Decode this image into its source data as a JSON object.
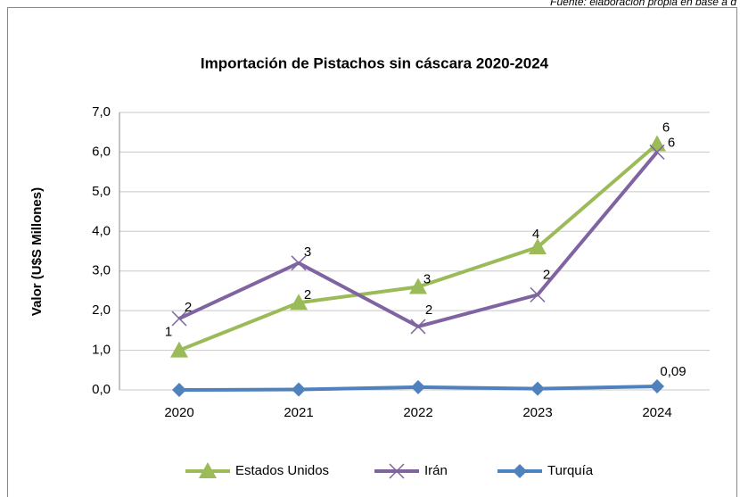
{
  "chart_data": {
    "type": "line",
    "source": "Fuente: elaboración propia en base a d",
    "title": "Importación de Pistachos sin cáscara 2020-2024",
    "y_label": "Valor (U$S Millones)",
    "categories": [
      "2020",
      "2021",
      "2022",
      "2023",
      "2024"
    ],
    "ylim": [
      0,
      7
    ],
    "yticks": [
      {
        "value": 0,
        "label": "0,0"
      },
      {
        "value": 1,
        "label": "1,0"
      },
      {
        "value": 2,
        "label": "2,0"
      },
      {
        "value": 3,
        "label": "3,0"
      },
      {
        "value": 4,
        "label": "4,0"
      },
      {
        "value": 5,
        "label": "5,0"
      },
      {
        "value": 6,
        "label": "6,0"
      },
      {
        "value": 7,
        "label": "7,0"
      }
    ],
    "grid": true,
    "legend": "bottom",
    "series": [
      {
        "name": "Estados Unidos",
        "color": "#9bbb59",
        "marker": "triangle",
        "values": [
          1.0,
          2.2,
          2.6,
          3.6,
          6.2
        ],
        "value_labels": [
          "1",
          "2",
          "3",
          "4",
          "6"
        ]
      },
      {
        "name": "Irán",
        "color": "#8064a2",
        "marker": "x",
        "values": [
          1.8,
          3.2,
          1.6,
          2.4,
          6.0
        ],
        "value_labels": [
          "2",
          "3",
          "2",
          "2",
          "6"
        ]
      },
      {
        "name": "Turquía",
        "color": "#4f81bd",
        "marker": "diamond",
        "values": [
          0.0,
          0.01,
          0.07,
          0.03,
          0.09
        ],
        "value_labels": [
          null,
          null,
          null,
          null,
          "0,09"
        ]
      }
    ]
  }
}
